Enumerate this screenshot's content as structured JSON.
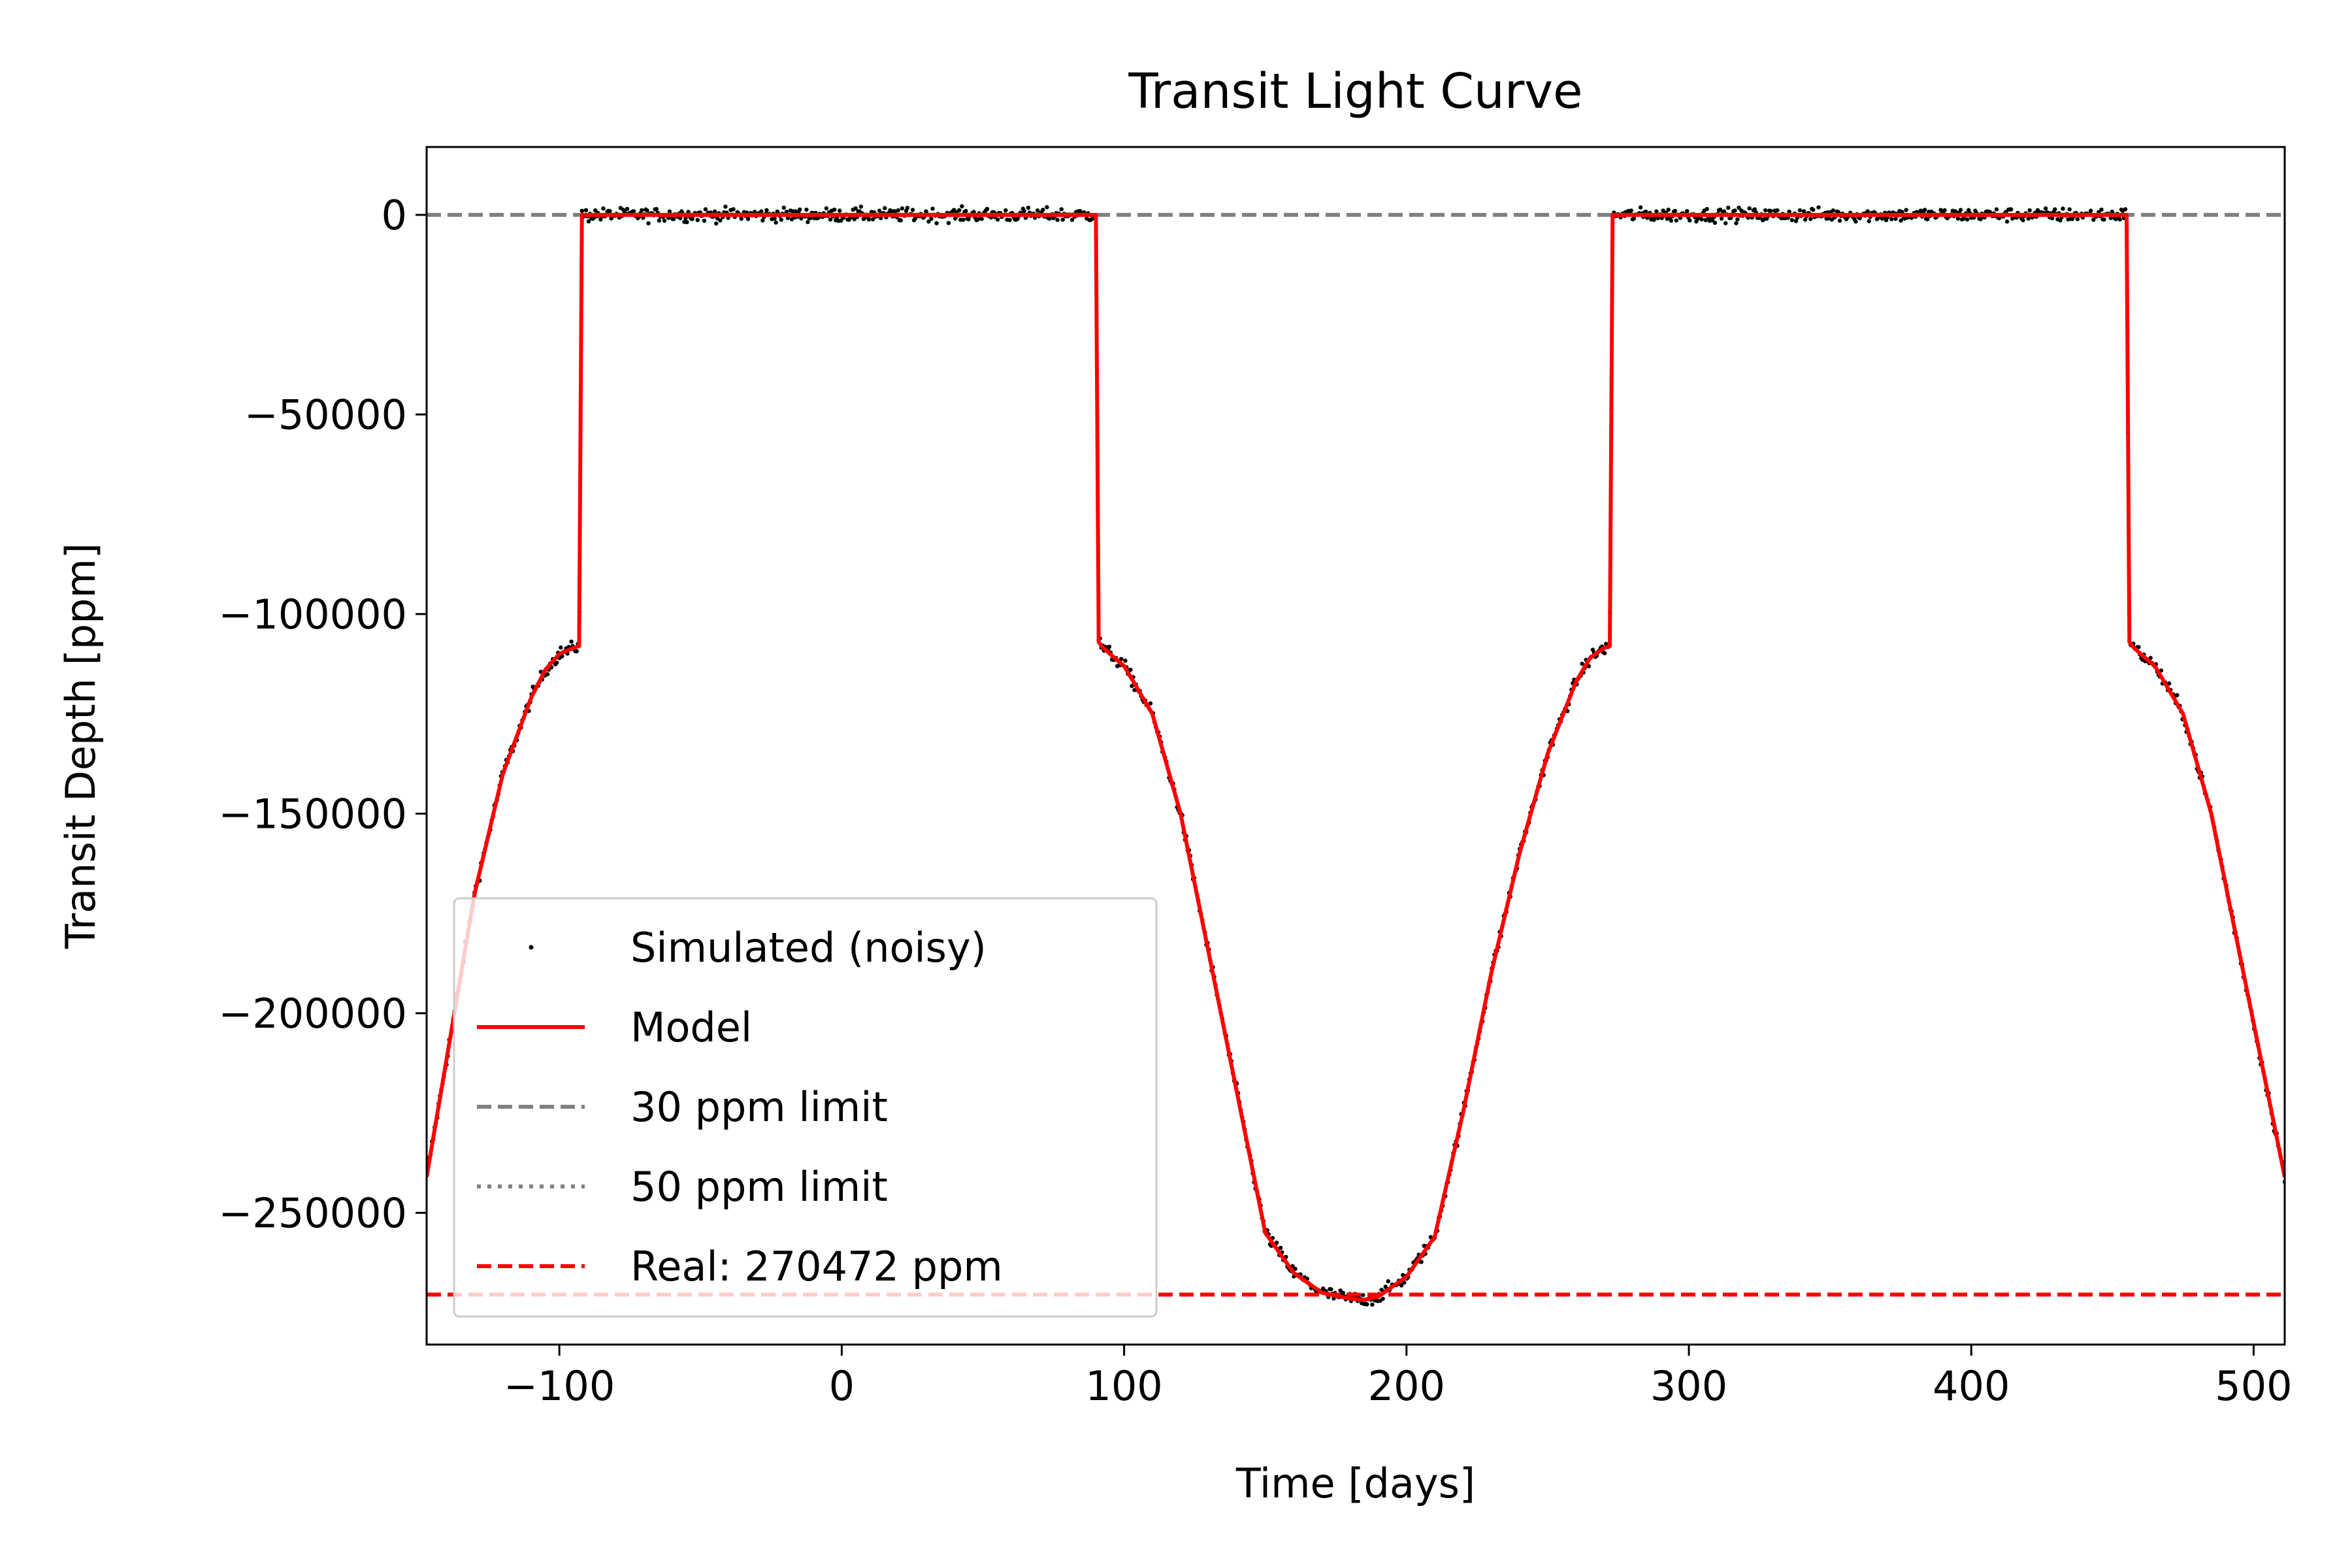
{
  "chart_data": {
    "type": "line",
    "title": "Transit Light Curve",
    "xlabel": "Time [days]",
    "ylabel": "Transit Depth [ppm]",
    "xlim": [
      -147,
      511
    ],
    "ylim": [
      -283000,
      17000
    ],
    "xticks": [
      -100,
      0,
      100,
      200,
      300,
      400,
      500
    ],
    "xtick_labels": [
      "−100",
      "0",
      "100",
      "200",
      "300",
      "400",
      "500"
    ],
    "yticks": [
      0,
      -50000,
      -100000,
      -150000,
      -200000,
      -250000
    ],
    "ytick_labels": [
      "0",
      "−50000",
      "−100000",
      "−150000",
      "−200000",
      "−250000"
    ],
    "grid": false,
    "legend_position": "lower-left",
    "colors": {
      "model": "#ff0000",
      "noisy": "#000000",
      "limit30": "#808080",
      "limit50": "#808080",
      "real": "#ff0000"
    },
    "series": [
      {
        "name": "Simulated (noisy)",
        "style": "points",
        "noise_ppm": 1200,
        "follows": "Model"
      },
      {
        "name": "Model",
        "style": "solid",
        "x": [
          -147,
          -130,
          -120,
          -110,
          -105,
          -100,
          -95,
          -93,
          -92,
          -91,
          0,
          90,
          91,
          92,
          95,
          100,
          110,
          120,
          130,
          140,
          150,
          160,
          170,
          180,
          185,
          190,
          200,
          210,
          220,
          230,
          240,
          250,
          260,
          265,
          270,
          272,
          273,
          274,
          365,
          455,
          456,
          457,
          460,
          465,
          475,
          485,
          495,
          505,
          511
        ],
        "y": [
          -241000,
          -170000,
          -140000,
          -121000,
          -114000,
          -110000,
          -108500,
          -108000,
          0,
          0,
          0,
          0,
          -107000,
          -108000,
          -110000,
          -113000,
          -125000,
          -150000,
          -185000,
          -220000,
          -255000,
          -265000,
          -270000,
          -271500,
          -271800,
          -271000,
          -266000,
          -256000,
          -225000,
          -190000,
          -160000,
          -135000,
          -117000,
          -111000,
          -108500,
          -108000,
          0,
          0,
          0,
          0,
          -107000,
          -108000,
          -110000,
          -113000,
          -125000,
          -150000,
          -185000,
          -220000,
          -241000
        ]
      },
      {
        "name": "30 ppm limit",
        "style": "dashed",
        "y": 0
      },
      {
        "name": "50 ppm limit",
        "style": "dotted",
        "y": 0
      },
      {
        "name": "Real: 270472 ppm",
        "style": "dashed",
        "y": -270472
      }
    ]
  }
}
